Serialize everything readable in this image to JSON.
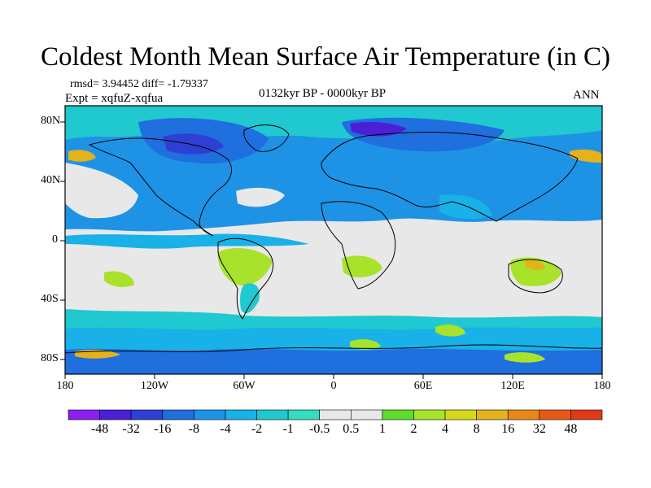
{
  "title": "Coldest Month Mean Surface Air Temperature (in C)",
  "stats_line": "rmsd= 3.94452 diff= -1.79337",
  "experiment_line": "Expt = xqfuZ-xqfua",
  "period_label": "0132kyr BP - 0000kyr BP",
  "season_label": "ANN",
  "lat_ticks": [
    "80N",
    "40N",
    "0",
    "40S",
    "80S"
  ],
  "lon_ticks": [
    "180",
    "120W",
    "60W",
    "0",
    "60E",
    "120E",
    "180"
  ],
  "colorbar": {
    "labels": [
      "-48",
      "-32",
      "-16",
      "-8",
      "-4",
      "-2",
      "-1",
      "-0.5",
      "0.5",
      "1",
      "2",
      "4",
      "8",
      "16",
      "32",
      "48"
    ],
    "colors": [
      "#8a1ff0",
      "#4b1fd6",
      "#2f3fd4",
      "#1f6fdf",
      "#1e93e6",
      "#18b1e8",
      "#20c8cf",
      "#34dcc0",
      "#e8e8e8",
      "#5ddc2a",
      "#a8e22a",
      "#d6d81a",
      "#e4b21a",
      "#e8881a",
      "#e65a18",
      "#e03a18"
    ]
  },
  "map_colors": {
    "neutral": "#e8e8e8",
    "teal": "#20c8cf",
    "cyan": "#18b1e8",
    "blue_light": "#1e93e6",
    "blue": "#1f6fdf",
    "blue_dark": "#2f3fd4",
    "violet": "#4b1fd6",
    "green": "#a8e22a",
    "green_bright": "#5ddc2a",
    "yellow": "#d6d81a",
    "orange": "#e4b21a",
    "coast": "#000000"
  }
}
